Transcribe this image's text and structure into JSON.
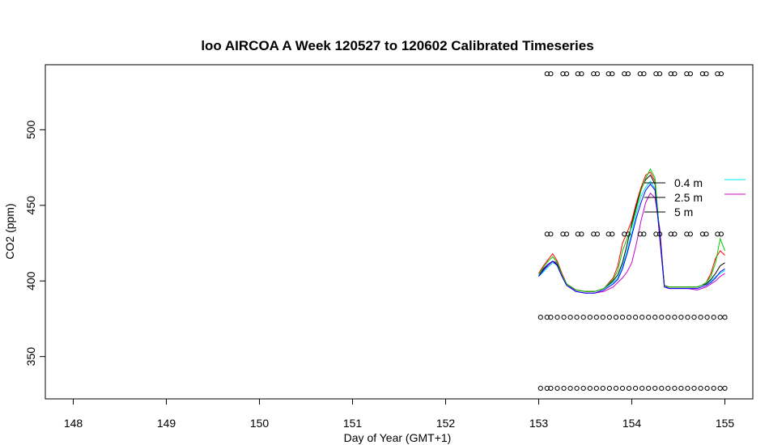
{
  "chart_data": {
    "type": "line",
    "title": "loo AIRCOA A  Week 120527 to 120602  Calibrated Timeseries",
    "xlabel": "Day of Year (GMT+1)",
    "ylabel": "CO2 (ppm)",
    "xlim": [
      147.7,
      155.3
    ],
    "ylim": [
      322,
      543
    ],
    "x_ticks": [
      "148",
      "149",
      "150",
      "151",
      "152",
      "153",
      "154",
      "155"
    ],
    "y_ticks": [
      "350",
      "400",
      "450",
      "500"
    ],
    "grid": false,
    "legend": {
      "placement": "right",
      "entries": [
        {
          "label": "0.4 m",
          "color": "#00e5ee"
        },
        {
          "label": "2.5 m",
          "color": "#cc00cc"
        },
        {
          "label": "5 m",
          "color": "#000000"
        }
      ]
    },
    "series": [
      {
        "name": "0.4 m",
        "color": "#00e5ee",
        "x": [
          153.0,
          153.05,
          153.1,
          153.15,
          153.2,
          153.25,
          153.3,
          153.4,
          153.5,
          153.6,
          153.7,
          153.8,
          153.85,
          153.9,
          153.95,
          154.0,
          154.05,
          154.1,
          154.15,
          154.2,
          154.25,
          154.3,
          154.35,
          154.4,
          154.5,
          154.6,
          154.7,
          154.75,
          154.8,
          154.85,
          154.9,
          154.95,
          155.0
        ],
        "y": [
          403,
          406,
          409,
          412,
          411,
          404,
          398,
          394,
          393,
          393,
          395,
          399,
          402,
          410,
          420,
          432,
          445,
          456,
          462,
          466,
          461,
          430,
          397,
          396,
          396,
          396,
          396,
          397,
          398,
          400,
          403,
          405,
          407
        ]
      },
      {
        "name": "2.5 m",
        "color": "#cc00cc",
        "x": [
          153.0,
          153.05,
          153.1,
          153.15,
          153.2,
          153.25,
          153.3,
          153.4,
          153.5,
          153.6,
          153.7,
          153.8,
          153.85,
          153.9,
          153.95,
          154.0,
          154.05,
          154.1,
          154.15,
          154.2,
          154.25,
          154.3,
          154.35,
          154.4,
          154.5,
          154.6,
          154.7,
          154.75,
          154.8,
          154.85,
          154.9,
          154.95,
          155.0
        ],
        "y": [
          403,
          407,
          410,
          413,
          412,
          404,
          398,
          393,
          392,
          392,
          393,
          396,
          399,
          402,
          406,
          412,
          425,
          440,
          452,
          458,
          455,
          435,
          397,
          395,
          395,
          395,
          394,
          395,
          396,
          398,
          400,
          403,
          405
        ]
      },
      {
        "name": "5 m",
        "color": "#000000",
        "x": [
          153.0,
          153.05,
          153.1,
          153.15,
          153.2,
          153.25,
          153.3,
          153.4,
          153.5,
          153.6,
          153.7,
          153.8,
          153.85,
          153.9,
          153.95,
          154.0,
          154.05,
          154.1,
          154.15,
          154.2,
          154.25,
          154.3,
          154.35,
          154.4,
          154.5,
          154.6,
          154.7,
          154.75,
          154.8,
          154.85,
          154.9,
          154.95,
          155.0
        ],
        "y": [
          404,
          408,
          411,
          413,
          411,
          404,
          398,
          394,
          393,
          393,
          395,
          400,
          404,
          412,
          424,
          438,
          450,
          461,
          467,
          470,
          464,
          432,
          397,
          396,
          396,
          396,
          396,
          397,
          398,
          401,
          405,
          410,
          412
        ]
      },
      {
        "name": "",
        "color": "#ff0000",
        "x": [
          153.0,
          153.05,
          153.1,
          153.15,
          153.2,
          153.25,
          153.3,
          153.4,
          153.5,
          153.6,
          153.7,
          153.8,
          153.85,
          153.9,
          153.95,
          154.0,
          154.05,
          154.1,
          154.15,
          154.2,
          154.25,
          154.3,
          154.35,
          154.4,
          154.5,
          154.6,
          154.7,
          154.75,
          154.8,
          154.85,
          154.9,
          154.95,
          155.0
        ],
        "y": [
          405,
          410,
          414,
          418,
          413,
          405,
          398,
          394,
          393,
          393,
          395,
          402,
          410,
          425,
          432,
          440,
          452,
          462,
          470,
          472,
          466,
          428,
          397,
          396,
          396,
          396,
          396,
          397,
          399,
          405,
          415,
          420,
          417
        ]
      },
      {
        "name": "",
        "color": "#00cc00",
        "x": [
          153.0,
          153.05,
          153.1,
          153.15,
          153.2,
          153.25,
          153.3,
          153.4,
          153.5,
          153.6,
          153.7,
          153.8,
          153.85,
          153.9,
          153.95,
          154.0,
          154.05,
          154.1,
          154.15,
          154.2,
          154.25,
          154.3,
          154.35,
          154.4,
          154.5,
          154.6,
          154.7,
          154.75,
          154.8,
          154.85,
          154.9,
          154.95,
          155.0
        ],
        "y": [
          404,
          409,
          413,
          416,
          412,
          404,
          398,
          394,
          393,
          393,
          395,
          401,
          407,
          420,
          428,
          436,
          448,
          460,
          468,
          474,
          468,
          430,
          397,
          396,
          396,
          396,
          396,
          397,
          399,
          403,
          412,
          428,
          420
        ]
      },
      {
        "name": "",
        "color": "#0000ff",
        "x": [
          153.0,
          153.05,
          153.1,
          153.15,
          153.2,
          153.25,
          153.3,
          153.4,
          153.5,
          153.6,
          153.7,
          153.8,
          153.85,
          153.9,
          153.95,
          154.0,
          154.05,
          154.1,
          154.15,
          154.2,
          154.25,
          154.3,
          154.35,
          154.4,
          154.5,
          154.6,
          154.7,
          154.75,
          154.8,
          154.85,
          154.9,
          154.95,
          155.0
        ],
        "y": [
          403,
          407,
          411,
          413,
          410,
          403,
          397,
          393,
          392,
          392,
          394,
          398,
          401,
          408,
          418,
          430,
          442,
          452,
          460,
          464,
          460,
          430,
          396,
          395,
          395,
          395,
          395,
          396,
          397,
          399,
          402,
          406,
          408
        ]
      }
    ],
    "markers": {
      "shape": "open-circle",
      "rows": [
        {
          "y": 537,
          "x": [
            153.09,
            153.13,
            153.26,
            153.3,
            153.42,
            153.46,
            153.59,
            153.63,
            153.75,
            153.79,
            153.92,
            153.96,
            154.09,
            154.13,
            154.26,
            154.3,
            154.42,
            154.46,
            154.59,
            154.63,
            154.76,
            154.8,
            154.92,
            154.96
          ]
        },
        {
          "y": 431,
          "x": [
            153.09,
            153.13,
            153.26,
            153.3,
            153.42,
            153.46,
            153.59,
            153.63,
            153.75,
            153.79,
            153.92,
            153.96,
            154.09,
            154.13,
            154.26,
            154.3,
            154.42,
            154.46,
            154.59,
            154.63,
            154.76,
            154.8,
            154.92,
            154.96
          ]
        },
        {
          "y": 376,
          "x": [
            153.02,
            153.09,
            153.13,
            153.2,
            153.27,
            153.34,
            153.41,
            153.48,
            153.55,
            153.62,
            153.69,
            153.76,
            153.83,
            153.9,
            153.97,
            154.04,
            154.11,
            154.18,
            154.25,
            154.32,
            154.39,
            154.46,
            154.53,
            154.6,
            154.67,
            154.74,
            154.81,
            154.88,
            154.95,
            155.0
          ]
        },
        {
          "y": 329,
          "x": [
            153.02,
            153.09,
            153.13,
            153.2,
            153.27,
            153.34,
            153.41,
            153.48,
            153.55,
            153.62,
            153.69,
            153.76,
            153.83,
            153.9,
            153.97,
            154.04,
            154.11,
            154.18,
            154.25,
            154.32,
            154.39,
            154.46,
            154.53,
            154.6,
            154.67,
            154.74,
            154.81,
            154.88,
            154.95,
            155.0
          ]
        }
      ]
    }
  }
}
